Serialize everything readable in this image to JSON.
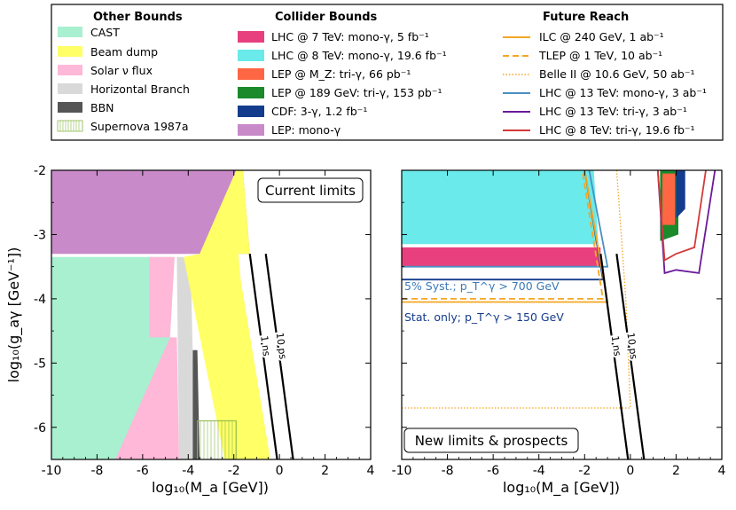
{
  "legend": {
    "other_title": "Other Bounds",
    "collider_title": "Collider Bounds",
    "future_title": "Future Reach",
    "other": [
      {
        "label": "CAST",
        "color": "#a8f0d0"
      },
      {
        "label": "Beam dump",
        "color": "#ffff66"
      },
      {
        "label": "Solar ν flux",
        "color": "#ffb8d8"
      },
      {
        "label": "Horizontal Branch",
        "color": "#d9d9d9"
      },
      {
        "label": "BBN",
        "color": "#555555"
      },
      {
        "label": "Supernova 1987a",
        "color": "#8ab84a"
      }
    ],
    "collider": [
      {
        "label": "LHC @ 7 TeV: mono-γ, 5 fb⁻¹",
        "color": "#e8407f"
      },
      {
        "label": "LHC @ 8 TeV: mono-γ, 19.6 fb⁻¹",
        "color": "#6aeaea"
      },
      {
        "label": "LEP @ M_Z: tri-γ, 66 pb⁻¹",
        "color": "#ff6644"
      },
      {
        "label": "LEP @ 189 GeV: tri-γ, 153 pb⁻¹",
        "color": "#1a8a2a"
      },
      {
        "label": "CDF: 3-γ, 1.2 fb⁻¹",
        "color": "#143c8c"
      },
      {
        "label": "LEP: mono-γ",
        "color": "#c88ac8"
      }
    ],
    "future": [
      {
        "label": "ILC @ 240 GeV, 1 ab⁻¹",
        "color": "#f5a623",
        "dash": "solid"
      },
      {
        "label": "TLEP @ 1 TeV, 10 ab⁻¹",
        "color": "#f5a623",
        "dash": "dashed"
      },
      {
        "label": "Belle II @ 10.6 GeV, 50 ab⁻¹",
        "color": "#f5a623",
        "dash": "dotted"
      },
      {
        "label": "LHC @ 13 TeV: mono-γ, 3 ab⁻¹",
        "color": "#4a90c2",
        "dash": "solid"
      },
      {
        "label": "LHC @ 13 TeV: tri-γ, 3 ab⁻¹",
        "color": "#6a1a9a",
        "dash": "solid"
      },
      {
        "label": "LHC @ 8 TeV: tri-γ, 19.6 fb⁻¹",
        "color": "#d43a3a",
        "dash": "solid"
      }
    ]
  },
  "chart_data": [
    {
      "type": "area",
      "title": "Current limits",
      "xlabel": "log₁₀(M_a [GeV])",
      "ylabel": "log₁₀(g_aγ [GeV⁻¹])",
      "xlim": [
        -10,
        4
      ],
      "ylim": [
        -6.5,
        -2
      ],
      "xticks": [
        "-10",
        "-8",
        "-6",
        "-4",
        "-2",
        "0",
        "2",
        "4"
      ],
      "yticks": [
        "-2",
        "-3",
        "-4",
        "-5",
        "-6"
      ],
      "regions": [
        {
          "name": "LEP: mono-γ",
          "points": [
            [
              -10,
              -2
            ],
            [
              -1.6,
              -2
            ],
            [
              -1.3,
              -3.3
            ],
            [
              -10,
              -3.3
            ]
          ]
        },
        {
          "name": "CAST",
          "points": [
            [
              -10,
              -3.35
            ],
            [
              -4.6,
              -3.35
            ],
            [
              -4.8,
              -4.6
            ],
            [
              -6.9,
              -6.5
            ],
            [
              -10,
              -6.5
            ]
          ]
        },
        {
          "name": "Solar ν flux",
          "points": [
            [
              -5.7,
              -3.35
            ],
            [
              -4.6,
              -3.35
            ],
            [
              -4.8,
              -4.6
            ],
            [
              -4.5,
              -4.6
            ],
            [
              -4.4,
              -6.5
            ],
            [
              -7.2,
              -6.5
            ],
            [
              -4.8,
              -4.6
            ],
            [
              -5.7,
              -4.6
            ]
          ]
        },
        {
          "name": "Horizontal Branch",
          "points": [
            [
              -4.5,
              -3.35
            ],
            [
              -3.9,
              -3.35
            ],
            [
              -3.7,
              -6.5
            ],
            [
              -4.4,
              -6.5
            ]
          ]
        },
        {
          "name": "BBN",
          "points": [
            [
              -3.8,
              -4.8
            ],
            [
              -3.6,
              -4.8
            ],
            [
              -3.5,
              -6.5
            ],
            [
              -3.8,
              -6.5
            ]
          ]
        },
        {
          "name": "Beam dump",
          "points": [
            [
              -1.9,
              -2
            ],
            [
              -1.6,
              -2
            ],
            [
              -1.3,
              -3.3
            ],
            [
              -1.8,
              -3.3
            ],
            [
              -1.7,
              -3.7
            ],
            [
              -0.4,
              -6.5
            ],
            [
              -2.4,
              -6.5
            ],
            [
              -4.2,
              -3.35
            ],
            [
              -3.5,
              -3.3
            ]
          ]
        },
        {
          "name": "Supernova 1987a",
          "points": [
            [
              -3.6,
              -5.9
            ],
            [
              -1.9,
              -5.9
            ],
            [
              -1.9,
              -6.5
            ],
            [
              -3.6,
              -6.5
            ]
          ]
        }
      ],
      "lifetime_lines": [
        {
          "label": "1 ns",
          "points": [
            [
              -1.3,
              -3.3
            ],
            [
              -0.1,
              -6.5
            ]
          ]
        },
        {
          "label": "10 ps",
          "points": [
            [
              -0.6,
              -3.3
            ],
            [
              0.6,
              -6.5
            ]
          ]
        }
      ]
    },
    {
      "type": "area",
      "title": "New limits & prospects",
      "xlabel": "log₁₀(M_a [GeV])",
      "ylabel": "",
      "xlim": [
        -10,
        4
      ],
      "ylim": [
        -6.5,
        -2
      ],
      "xticks": [
        "-10",
        "-8",
        "-6",
        "-4",
        "-2",
        "0",
        "2",
        "4"
      ],
      "annotations": [
        {
          "text": "5% Syst.; p_T^γ > 700 GeV",
          "color": "#3a7ab8"
        },
        {
          "text": "Stat. only; p_T^γ > 150 GeV",
          "color": "#143c8c"
        }
      ],
      "regions": [
        {
          "name": "LHC @ 8 TeV: mono-γ, 19.6 fb⁻¹",
          "points": [
            [
              -10,
              -2
            ],
            [
              -1.6,
              -2
            ],
            [
              -1.4,
              -3.15
            ],
            [
              -10,
              -3.15
            ]
          ]
        },
        {
          "name": "LHC @ 7 TeV: mono-γ, 5 fb⁻¹",
          "points": [
            [
              -10,
              -3.2
            ],
            [
              -1.3,
              -3.2
            ],
            [
              -1.3,
              -3.5
            ],
            [
              -10,
              -3.5
            ]
          ]
        },
        {
          "name": "LEP @ 189 GeV: tri-γ, 153 pb⁻¹",
          "points": [
            [
              1.3,
              -2
            ],
            [
              2.1,
              -2
            ],
            [
              2.1,
              -3.0
            ],
            [
              1.3,
              -3.1
            ]
          ]
        },
        {
          "name": "LEP @ M_Z: tri-γ, 66 pb⁻¹",
          "points": [
            [
              1.4,
              -2.05
            ],
            [
              1.95,
              -2.05
            ],
            [
              1.95,
              -2.85
            ],
            [
              1.4,
              -2.85
            ]
          ]
        },
        {
          "name": "CDF: 3-γ, 1.2 fb⁻¹",
          "points": [
            [
              2.0,
              -2
            ],
            [
              2.4,
              -2
            ],
            [
              2.4,
              -2.6
            ],
            [
              2.0,
              -2.75
            ]
          ]
        }
      ],
      "lines": [
        {
          "name": "LHC @ 13 TeV: mono-γ, 3 ab⁻¹",
          "points": [
            [
              -10,
              -3.5
            ],
            [
              -1.0,
              -3.5
            ],
            [
              -1.8,
              -2
            ]
          ]
        },
        {
          "name": "LHC @ 13 TeV: mono-γ (stat)",
          "points": [
            [
              -10,
              -3.7
            ],
            [
              -1.2,
              -3.7
            ],
            [
              -2.0,
              -2
            ]
          ]
        },
        {
          "name": "ILC @ 240 GeV, 1 ab⁻¹",
          "points": [
            [
              -10,
              -4.05
            ],
            [
              -1.0,
              -4.05
            ],
            [
              -2.0,
              -2
            ]
          ]
        },
        {
          "name": "TLEP @ 1 TeV, 10 ab⁻¹",
          "points": [
            [
              -10,
              -4.0
            ],
            [
              -1.2,
              -4.0
            ],
            [
              -2.1,
              -2
            ]
          ]
        },
        {
          "name": "Belle II @ 10.6 GeV, 50 ab⁻¹",
          "points": [
            [
              -10,
              -5.7
            ],
            [
              0.0,
              -5.7
            ],
            [
              -0.2,
              -4.0
            ],
            [
              -0.6,
              -2
            ]
          ]
        },
        {
          "name": "LHC @ 13 TeV: tri-γ, 3 ab⁻¹",
          "points": [
            [
              1.2,
              -2
            ],
            [
              1.5,
              -3.6
            ],
            [
              2.0,
              -3.55
            ],
            [
              3.0,
              -3.6
            ],
            [
              3.7,
              -2
            ]
          ]
        },
        {
          "name": "LHC @ 8 TeV: tri-γ, 19.6 fb⁻¹",
          "points": [
            [
              1.2,
              -2
            ],
            [
              1.5,
              -3.4
            ],
            [
              2.0,
              -3.3
            ],
            [
              2.8,
              -3.2
            ],
            [
              3.3,
              -2
            ]
          ]
        }
      ],
      "lifetime_lines": [
        {
          "label": "1 ns",
          "points": [
            [
              -1.3,
              -3.3
            ],
            [
              -0.1,
              -6.5
            ]
          ]
        },
        {
          "label": "10 ps",
          "points": [
            [
              -0.6,
              -3.3
            ],
            [
              0.6,
              -6.5
            ]
          ]
        }
      ]
    }
  ]
}
